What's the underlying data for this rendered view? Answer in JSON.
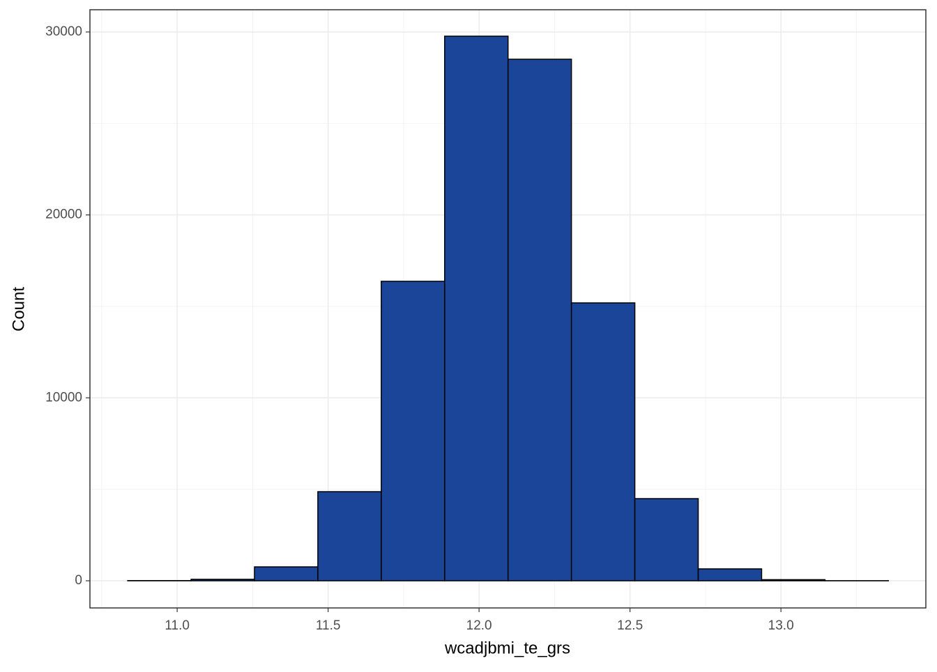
{
  "chart_data": {
    "type": "histogram",
    "x_label": "wcadjbmi_te_grs",
    "y_label": "Count",
    "bins": [
      10.836,
      11.046,
      11.256,
      11.466,
      11.676,
      11.886,
      12.096,
      12.306,
      12.516,
      12.726,
      12.936,
      13.146,
      13.356
    ],
    "values": [
      10,
      80,
      760,
      4870,
      16370,
      29770,
      28510,
      15190,
      4490,
      650,
      60,
      5
    ],
    "color": "#1a4599",
    "edge_color": "#000000",
    "xlim": [
      10.711,
      13.48
    ],
    "ylim": [
      -1485,
      31215
    ],
    "xticks": [
      {
        "value": 11.0,
        "label": "11.0"
      },
      {
        "value": 11.5,
        "label": "11.5"
      },
      {
        "value": 12.0,
        "label": "12.0"
      },
      {
        "value": 12.5,
        "label": "12.5"
      },
      {
        "value": 13.0,
        "label": "13.0"
      }
    ],
    "yticks": [
      0,
      10000,
      20000,
      30000
    ],
    "grid": true
  }
}
